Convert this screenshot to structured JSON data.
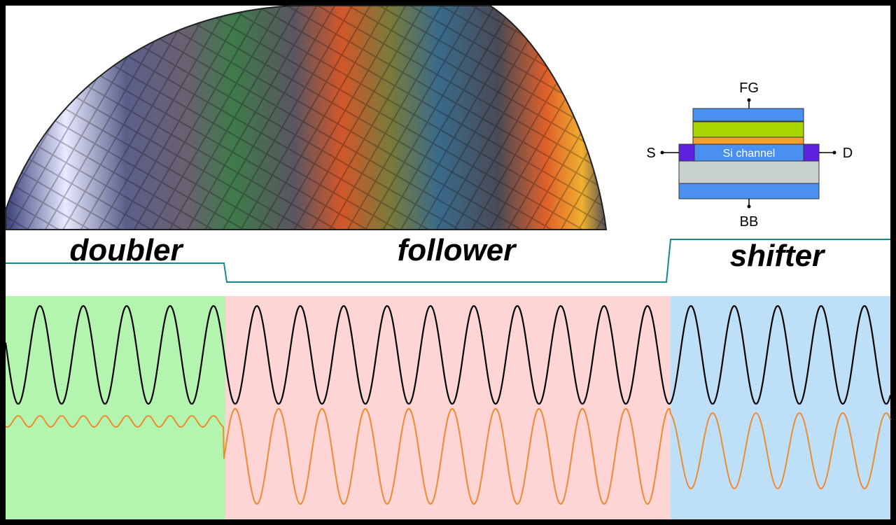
{
  "regions": {
    "doubler": "doubler",
    "follower": "follower",
    "shifter": "shifter"
  },
  "device": {
    "gate": "FG",
    "source": "S",
    "drain": "D",
    "back_gate": "BB",
    "channel": "Si channel"
  }
}
